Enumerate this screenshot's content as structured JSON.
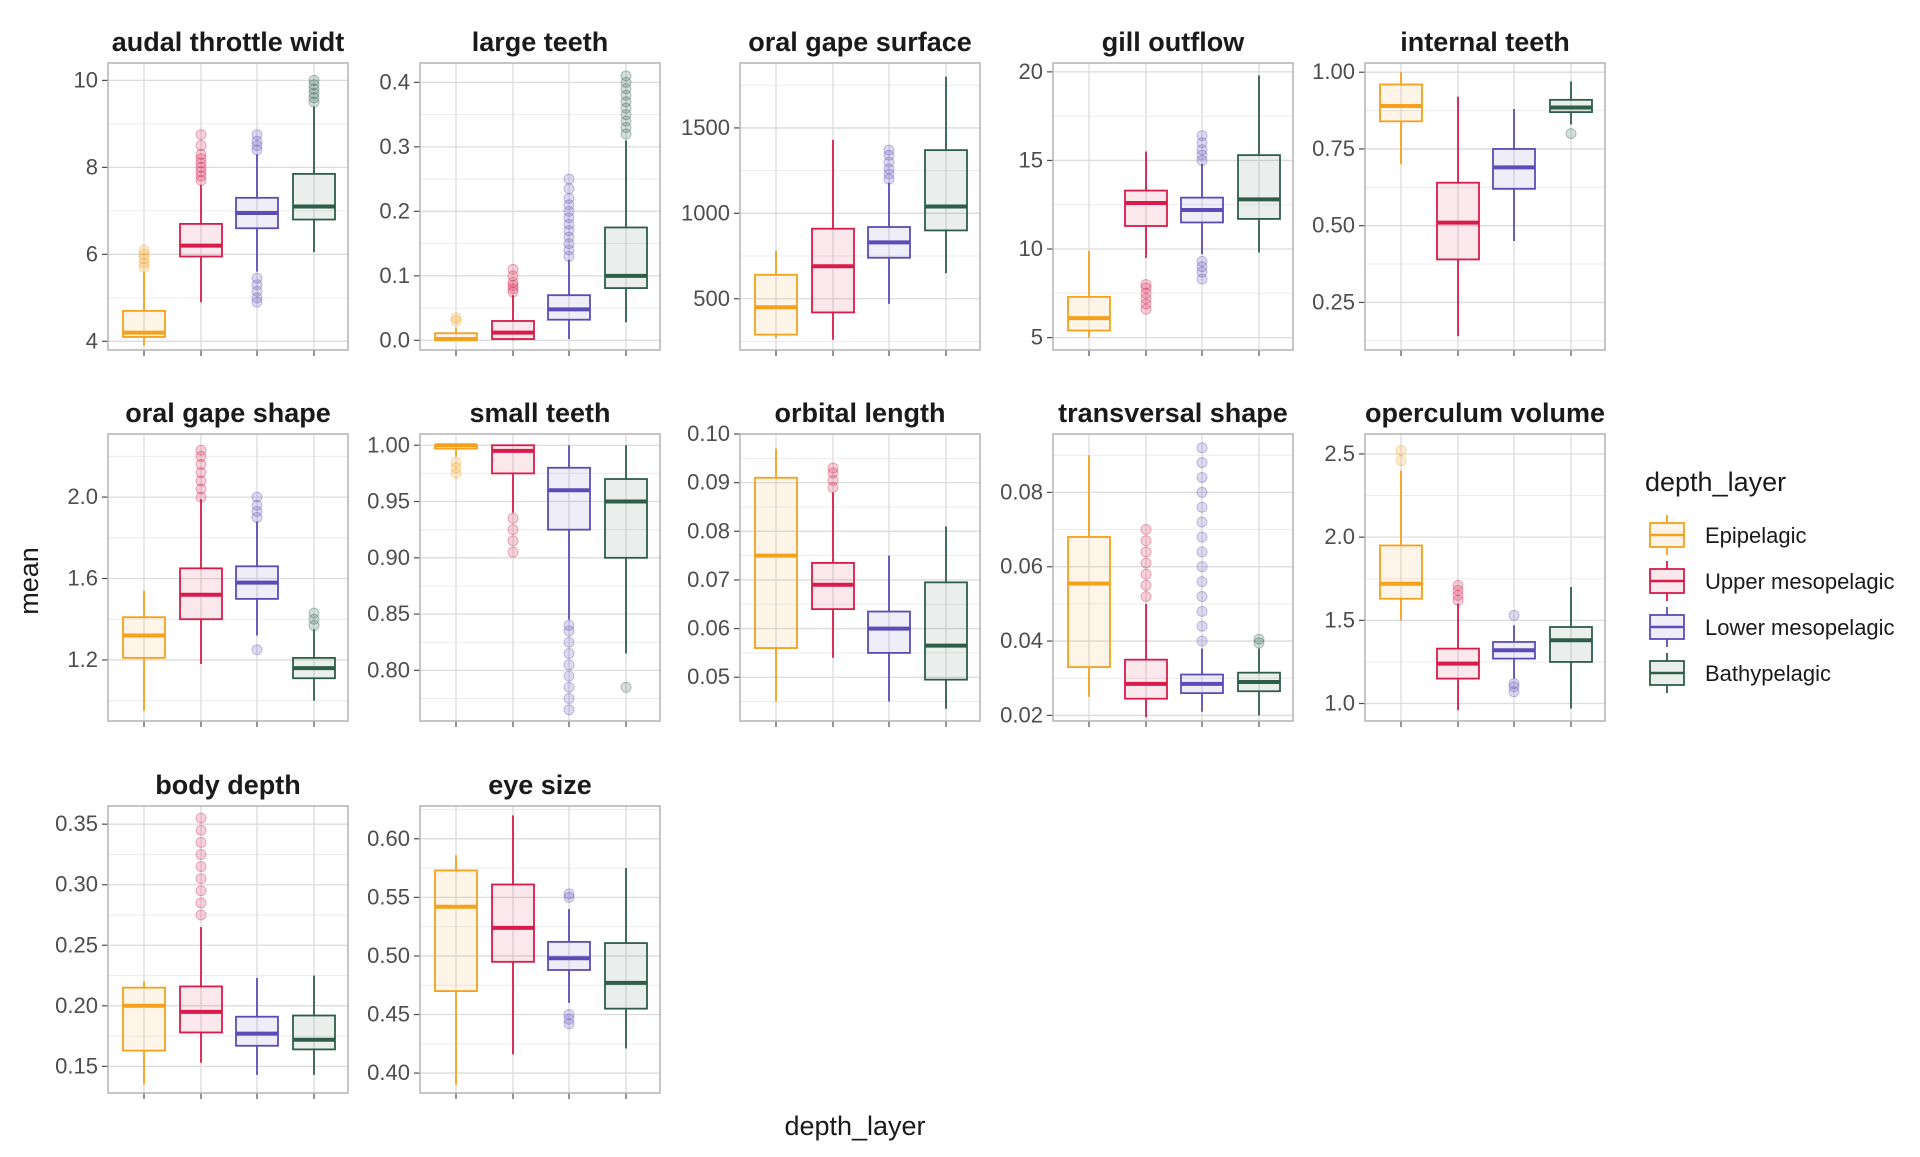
{
  "chart_data": {
    "type": "box",
    "xlabel": "depth_layer",
    "ylabel": "mean",
    "legend": {
      "title": "depth_layer",
      "placement": "right",
      "entries": [
        "Epipelagic",
        "Upper mesopelagic",
        "Lower mesopelagic",
        "Bathypelagic"
      ]
    },
    "colors": {
      "Epipelagic": "#f5a11b",
      "Upper mesopelagic": "#d81b4a",
      "Lower mesopelagic": "#5b4cb8",
      "Bathypelagic": "#2e5e4a"
    },
    "grid": true,
    "panels": [
      {
        "title": "audal throttle widt",
        "ylim": [
          3.8,
          10.4
        ],
        "yticks": [
          4,
          6,
          8,
          10
        ],
        "yticklabels": [
          "4",
          "6",
          "8",
          "10"
        ],
        "boxes": [
          {
            "group": "Epipelagic",
            "min": 3.9,
            "q1": 4.1,
            "median": 4.2,
            "q3": 4.7,
            "max": 5.6,
            "outliers": [
              5.7,
              5.8,
              5.9,
              6.0,
              6.1
            ]
          },
          {
            "group": "Upper mesopelagic",
            "min": 4.9,
            "q1": 5.95,
            "median": 6.2,
            "q3": 6.7,
            "max": 7.6,
            "outliers": [
              7.7,
              7.8,
              7.9,
              8.0,
              8.1,
              8.2,
              8.3,
              8.5,
              8.75
            ]
          },
          {
            "group": "Lower mesopelagic",
            "min": 5.6,
            "q1": 6.6,
            "median": 6.95,
            "q3": 7.3,
            "max": 8.3,
            "outliers": [
              4.9,
              5.0,
              5.15,
              5.3,
              5.45,
              8.4,
              8.5,
              8.6,
              8.75
            ]
          },
          {
            "group": "Bathypelagic",
            "min": 6.05,
            "q1": 6.8,
            "median": 7.1,
            "q3": 7.85,
            "max": 9.4,
            "outliers": [
              9.5,
              9.6,
              9.7,
              9.8,
              9.9,
              10.0
            ]
          }
        ]
      },
      {
        "title": "large teeth",
        "ylim": [
          -0.015,
          0.43
        ],
        "yticks": [
          0.0,
          0.1,
          0.2,
          0.3,
          0.4
        ],
        "yticklabels": [
          "0.0",
          "0.1",
          "0.2",
          "0.3",
          "0.4"
        ],
        "boxes": [
          {
            "group": "Epipelagic",
            "min": 0.0,
            "q1": 0.0,
            "median": 0.002,
            "q3": 0.011,
            "max": 0.02,
            "outliers": [
              0.03,
              0.035
            ]
          },
          {
            "group": "Upper mesopelagic",
            "min": 0.0,
            "q1": 0.002,
            "median": 0.012,
            "q3": 0.03,
            "max": 0.07,
            "outliers": [
              0.075,
              0.08,
              0.085,
              0.09,
              0.1,
              0.11
            ]
          },
          {
            "group": "Lower mesopelagic",
            "min": 0.002,
            "q1": 0.032,
            "median": 0.048,
            "q3": 0.07,
            "max": 0.125,
            "outliers": [
              0.13,
              0.14,
              0.15,
              0.16,
              0.17,
              0.18,
              0.19,
              0.2,
              0.21,
              0.22,
              0.235,
              0.25
            ]
          },
          {
            "group": "Bathypelagic",
            "min": 0.028,
            "q1": 0.081,
            "median": 0.1,
            "q3": 0.175,
            "max": 0.31,
            "outliers": [
              0.32,
              0.33,
              0.34,
              0.35,
              0.36,
              0.37,
              0.38,
              0.39,
              0.4,
              0.41
            ]
          }
        ]
      },
      {
        "title": "oral gape surface",
        "ylim": [
          200,
          1880
        ],
        "yticks": [
          500,
          1000,
          1500
        ],
        "yticklabels": [
          "500",
          "1000",
          "1500"
        ],
        "boxes": [
          {
            "group": "Epipelagic",
            "min": 270,
            "q1": 290,
            "median": 450,
            "q3": 640,
            "max": 780,
            "outliers": []
          },
          {
            "group": "Upper mesopelagic",
            "min": 260,
            "q1": 420,
            "median": 690,
            "q3": 910,
            "max": 1430,
            "outliers": []
          },
          {
            "group": "Lower mesopelagic",
            "min": 470,
            "q1": 740,
            "median": 830,
            "q3": 920,
            "max": 1180,
            "outliers": [
              1200,
              1230,
              1260,
              1300,
              1340,
              1370
            ]
          },
          {
            "group": "Bathypelagic",
            "min": 650,
            "q1": 900,
            "median": 1040,
            "q3": 1370,
            "max": 1800,
            "outliers": []
          }
        ]
      },
      {
        "title": "gill outflow",
        "ylim": [
          4.3,
          20.5
        ],
        "yticks": [
          5,
          10,
          15,
          20
        ],
        "yticklabels": [
          "5",
          "10",
          "15",
          "20"
        ],
        "boxes": [
          {
            "group": "Epipelagic",
            "min": 5.0,
            "q1": 5.4,
            "median": 6.1,
            "q3": 7.3,
            "max": 9.9,
            "outliers": []
          },
          {
            "group": "Upper mesopelagic",
            "min": 9.5,
            "q1": 11.3,
            "median": 12.6,
            "q3": 13.3,
            "max": 15.5,
            "outliers": [
              6.6,
              6.9,
              7.2,
              7.5,
              7.8,
              8.0
            ]
          },
          {
            "group": "Lower mesopelagic",
            "min": 9.7,
            "q1": 11.5,
            "median": 12.2,
            "q3": 12.9,
            "max": 14.8,
            "outliers": [
              8.3,
              8.7,
              9.0,
              9.3,
              15.0,
              15.3,
              15.6,
              16.0,
              16.4
            ]
          },
          {
            "group": "Bathypelagic",
            "min": 9.8,
            "q1": 11.7,
            "median": 12.8,
            "q3": 15.3,
            "max": 19.8,
            "outliers": []
          }
        ]
      },
      {
        "title": "internal teeth",
        "ylim": [
          0.095,
          1.03
        ],
        "yticks": [
          0.25,
          0.5,
          0.75,
          1.0
        ],
        "yticklabels": [
          "0.25",
          "0.50",
          "0.75",
          "1.00"
        ],
        "boxes": [
          {
            "group": "Epipelagic",
            "min": 0.7,
            "q1": 0.84,
            "median": 0.89,
            "q3": 0.96,
            "max": 1.0,
            "outliers": []
          },
          {
            "group": "Upper mesopelagic",
            "min": 0.14,
            "q1": 0.39,
            "median": 0.51,
            "q3": 0.64,
            "max": 0.92,
            "outliers": []
          },
          {
            "group": "Lower mesopelagic",
            "min": 0.45,
            "q1": 0.62,
            "median": 0.69,
            "q3": 0.75,
            "max": 0.88,
            "outliers": []
          },
          {
            "group": "Bathypelagic",
            "min": 0.83,
            "q1": 0.87,
            "median": 0.885,
            "q3": 0.91,
            "max": 0.97,
            "outliers": [
              0.8
            ]
          }
        ]
      },
      {
        "title": "oral gape shape",
        "ylim": [
          0.9,
          2.31
        ],
        "yticks": [
          1.2,
          1.6,
          2.0
        ],
        "yticklabels": [
          "1.2",
          "1.6",
          "2.0"
        ],
        "boxes": [
          {
            "group": "Epipelagic",
            "min": 0.95,
            "q1": 1.21,
            "median": 1.32,
            "q3": 1.41,
            "max": 1.54,
            "outliers": []
          },
          {
            "group": "Upper mesopelagic",
            "min": 1.18,
            "q1": 1.4,
            "median": 1.52,
            "q3": 1.65,
            "max": 1.99,
            "outliers": [
              2.0,
              2.04,
              2.08,
              2.12,
              2.16,
              2.2,
              2.23
            ]
          },
          {
            "group": "Lower mesopelagic",
            "min": 1.32,
            "q1": 1.5,
            "median": 1.58,
            "q3": 1.66,
            "max": 1.88,
            "outliers": [
              1.25,
              1.9,
              1.93,
              1.96,
              2.0
            ]
          },
          {
            "group": "Bathypelagic",
            "min": 1.0,
            "q1": 1.11,
            "median": 1.16,
            "q3": 1.21,
            "max": 1.35,
            "outliers": [
              1.37,
              1.4,
              1.43
            ]
          }
        ]
      },
      {
        "title": "small teeth",
        "ylim": [
          0.755,
          1.01
        ],
        "yticks": [
          0.8,
          0.85,
          0.9,
          0.95,
          1.0
        ],
        "yticklabels": [
          "0.80",
          "0.85",
          "0.90",
          "0.95",
          "1.00"
        ],
        "boxes": [
          {
            "group": "Epipelagic",
            "min": 0.99,
            "q1": 0.997,
            "median": 1.0,
            "q3": 1.0,
            "max": 1.0,
            "outliers": [
              0.975,
              0.98,
              0.985
            ]
          },
          {
            "group": "Upper mesopelagic",
            "min": 0.94,
            "q1": 0.975,
            "median": 0.995,
            "q3": 1.0,
            "max": 1.0,
            "outliers": [
              0.905,
              0.915,
              0.925,
              0.935
            ]
          },
          {
            "group": "Lower mesopelagic",
            "min": 0.845,
            "q1": 0.925,
            "median": 0.96,
            "q3": 0.98,
            "max": 1.0,
            "outliers": [
              0.765,
              0.775,
              0.785,
              0.795,
              0.805,
              0.815,
              0.825,
              0.835,
              0.84
            ]
          },
          {
            "group": "Bathypelagic",
            "min": 0.815,
            "q1": 0.9,
            "median": 0.95,
            "q3": 0.97,
            "max": 1.0,
            "outliers": [
              0.785
            ]
          }
        ]
      },
      {
        "title": "orbital length",
        "ylim": [
          0.041,
          0.1
        ],
        "yticks": [
          0.05,
          0.06,
          0.07,
          0.08,
          0.09,
          0.1
        ],
        "yticklabels": [
          "0.05",
          "0.06",
          "0.07",
          "0.08",
          "0.09",
          "0.10"
        ],
        "boxes": [
          {
            "group": "Epipelagic",
            "min": 0.045,
            "q1": 0.056,
            "median": 0.075,
            "q3": 0.091,
            "max": 0.097,
            "outliers": []
          },
          {
            "group": "Upper mesopelagic",
            "min": 0.054,
            "q1": 0.064,
            "median": 0.069,
            "q3": 0.0735,
            "max": 0.088,
            "outliers": [
              0.089,
              0.0905,
              0.092,
              0.093
            ]
          },
          {
            "group": "Lower mesopelagic",
            "min": 0.045,
            "q1": 0.055,
            "median": 0.06,
            "q3": 0.0635,
            "max": 0.075,
            "outliers": []
          },
          {
            "group": "Bathypelagic",
            "min": 0.0435,
            "q1": 0.0495,
            "median": 0.0565,
            "q3": 0.0695,
            "max": 0.081,
            "outliers": []
          }
        ]
      },
      {
        "title": "transversal shape",
        "ylim": [
          0.0185,
          0.0957
        ],
        "yticks": [
          0.02,
          0.04,
          0.06,
          0.08
        ],
        "yticklabels": [
          "0.02",
          "0.04",
          "0.06",
          "0.08"
        ],
        "boxes": [
          {
            "group": "Epipelagic",
            "min": 0.025,
            "q1": 0.033,
            "median": 0.0555,
            "q3": 0.068,
            "max": 0.09,
            "outliers": []
          },
          {
            "group": "Upper mesopelagic",
            "min": 0.0195,
            "q1": 0.0245,
            "median": 0.0285,
            "q3": 0.035,
            "max": 0.05,
            "outliers": [
              0.052,
              0.055,
              0.058,
              0.061,
              0.064,
              0.067,
              0.07
            ]
          },
          {
            "group": "Lower mesopelagic",
            "min": 0.021,
            "q1": 0.026,
            "median": 0.0285,
            "q3": 0.031,
            "max": 0.038,
            "outliers": [
              0.04,
              0.044,
              0.048,
              0.052,
              0.056,
              0.06,
              0.064,
              0.068,
              0.072,
              0.076,
              0.08,
              0.084,
              0.088,
              0.092
            ]
          },
          {
            "group": "Bathypelagic",
            "min": 0.02,
            "q1": 0.0265,
            "median": 0.029,
            "q3": 0.0315,
            "max": 0.038,
            "outliers": [
              0.0395,
              0.0405
            ]
          }
        ]
      },
      {
        "title": "operculum volume",
        "ylim": [
          0.895,
          2.62
        ],
        "yticks": [
          1.0,
          1.5,
          2.0,
          2.5
        ],
        "yticklabels": [
          "1.0",
          "1.5",
          "2.0",
          "2.5"
        ],
        "boxes": [
          {
            "group": "Epipelagic",
            "min": 1.5,
            "q1": 1.63,
            "median": 1.72,
            "q3": 1.95,
            "max": 2.4,
            "outliers": [
              2.46,
              2.52
            ]
          },
          {
            "group": "Upper mesopelagic",
            "min": 0.96,
            "q1": 1.15,
            "median": 1.24,
            "q3": 1.33,
            "max": 1.6,
            "outliers": [
              1.62,
              1.65,
              1.68,
              1.71
            ]
          },
          {
            "group": "Lower mesopelagic",
            "min": 1.15,
            "q1": 1.27,
            "median": 1.32,
            "q3": 1.37,
            "max": 1.47,
            "outliers": [
              1.07,
              1.1,
              1.12,
              1.53
            ]
          },
          {
            "group": "Bathypelagic",
            "min": 0.97,
            "q1": 1.25,
            "median": 1.38,
            "q3": 1.46,
            "max": 1.7,
            "outliers": []
          }
        ]
      },
      {
        "title": "body depth",
        "ylim": [
          0.128,
          0.365
        ],
        "yticks": [
          0.15,
          0.2,
          0.25,
          0.3,
          0.35
        ],
        "yticklabels": [
          "0.15",
          "0.20",
          "0.25",
          "0.30",
          "0.35"
        ],
        "boxes": [
          {
            "group": "Epipelagic",
            "min": 0.135,
            "q1": 0.163,
            "median": 0.2,
            "q3": 0.215,
            "max": 0.22,
            "outliers": []
          },
          {
            "group": "Upper mesopelagic",
            "min": 0.153,
            "q1": 0.178,
            "median": 0.195,
            "q3": 0.216,
            "max": 0.265,
            "outliers": [
              0.275,
              0.285,
              0.295,
              0.305,
              0.315,
              0.325,
              0.335,
              0.345,
              0.355
            ]
          },
          {
            "group": "Lower mesopelagic",
            "min": 0.143,
            "q1": 0.167,
            "median": 0.177,
            "q3": 0.191,
            "max": 0.223,
            "outliers": []
          },
          {
            "group": "Bathypelagic",
            "min": 0.143,
            "q1": 0.164,
            "median": 0.172,
            "q3": 0.192,
            "max": 0.225,
            "outliers": []
          }
        ]
      },
      {
        "title": "eye size",
        "ylim": [
          0.383,
          0.628
        ],
        "yticks": [
          0.4,
          0.45,
          0.5,
          0.55,
          0.6
        ],
        "yticklabels": [
          "0.40",
          "0.45",
          "0.50",
          "0.55",
          "0.60"
        ],
        "boxes": [
          {
            "group": "Epipelagic",
            "min": 0.39,
            "q1": 0.47,
            "median": 0.542,
            "q3": 0.573,
            "max": 0.586,
            "outliers": []
          },
          {
            "group": "Upper mesopelagic",
            "min": 0.416,
            "q1": 0.495,
            "median": 0.524,
            "q3": 0.561,
            "max": 0.62,
            "outliers": []
          },
          {
            "group": "Lower mesopelagic",
            "min": 0.46,
            "q1": 0.488,
            "median": 0.498,
            "q3": 0.512,
            "max": 0.54,
            "outliers": [
              0.442,
              0.446,
              0.45,
              0.55,
              0.553
            ]
          },
          {
            "group": "Bathypelagic",
            "min": 0.421,
            "q1": 0.455,
            "median": 0.477,
            "q3": 0.511,
            "max": 0.575,
            "outliers": []
          }
        ]
      }
    ]
  }
}
